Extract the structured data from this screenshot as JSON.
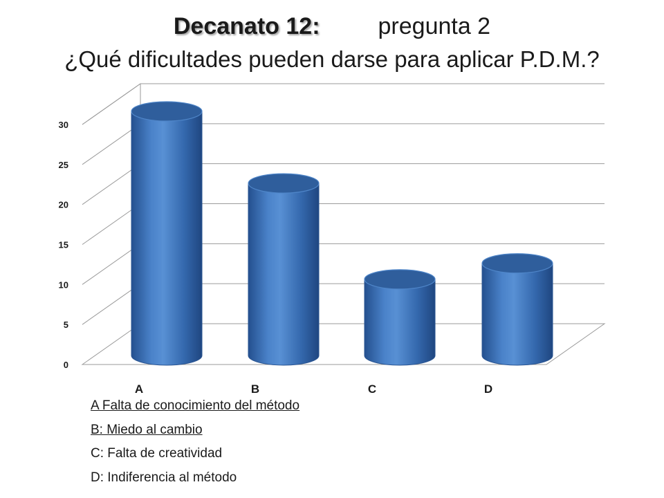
{
  "title": {
    "bold": "Decanato 12:",
    "rest": "pregunta 2",
    "question": "¿Qué dificultades pueden darse para aplicar P.D.M.?"
  },
  "chart_data": {
    "type": "bar",
    "style": "3d-cylinder",
    "categories": [
      "A",
      "B",
      "C",
      "D"
    ],
    "values": [
      30,
      21,
      9,
      11
    ],
    "ylim": [
      0,
      30
    ],
    "yticks": [
      "0",
      "5",
      "10",
      "15",
      "20",
      "25",
      "30"
    ],
    "grid": true,
    "bar_color": "#3c70b8"
  },
  "legend": [
    {
      "text": "A Falta de conocimiento del método",
      "underlined": true
    },
    {
      "text": "B: Miedo al cambio",
      "underlined": true
    },
    {
      "text": "C: Falta de creatividad",
      "underlined": false
    },
    {
      "text": "D: Indiferencia  al método",
      "underlined": false
    }
  ]
}
